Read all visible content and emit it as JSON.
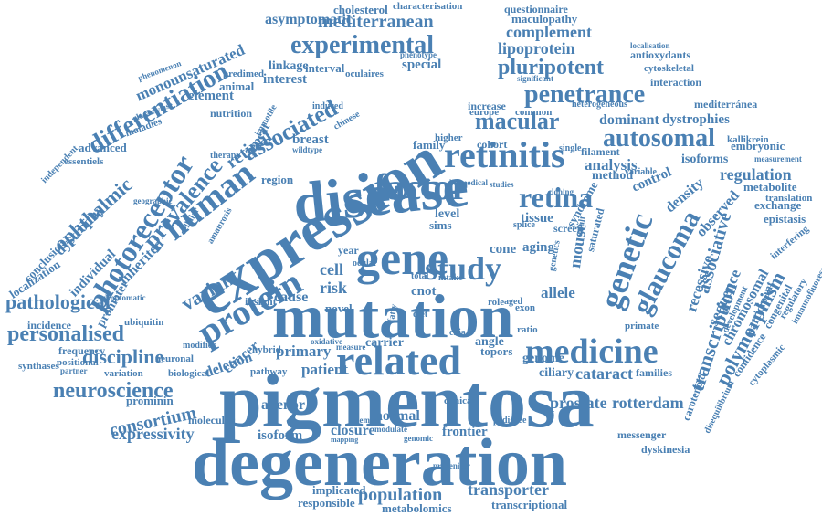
{
  "cloud": {
    "color": "#4a80b3",
    "words": [
      {
        "text": "pigmentosa"
      },
      {
        "text": "degeneration"
      },
      {
        "text": "mutation"
      },
      {
        "text": "expression"
      },
      {
        "text": "disease"
      },
      {
        "text": "gene"
      },
      {
        "text": "related"
      },
      {
        "text": "medicine"
      },
      {
        "text": "retinitis"
      },
      {
        "text": "factor"
      },
      {
        "text": "study"
      },
      {
        "text": "protein"
      },
      {
        "text": "human"
      },
      {
        "text": "genetic"
      },
      {
        "text": "glaucoma"
      },
      {
        "text": "retina"
      },
      {
        "text": "penetrance"
      },
      {
        "text": "macular"
      },
      {
        "text": "autosomal"
      },
      {
        "text": "photoreceptor"
      },
      {
        "text": "prevalence"
      },
      {
        "text": "associated"
      },
      {
        "text": "experimental"
      },
      {
        "text": "differentiation"
      },
      {
        "text": "neuroscience"
      },
      {
        "text": "personalised"
      },
      {
        "text": "pathological"
      },
      {
        "text": "transcription"
      },
      {
        "text": "polymorphism"
      },
      {
        "text": "variant"
      },
      {
        "text": "ophthalmic"
      },
      {
        "text": "associative"
      },
      {
        "text": "pluripotent"
      },
      {
        "text": "lipoprotein"
      },
      {
        "text": "mediterranean"
      },
      {
        "text": "consortium"
      },
      {
        "text": "discipline"
      },
      {
        "text": "expressivity"
      },
      {
        "text": "population"
      },
      {
        "text": "transporter"
      },
      {
        "text": "cataract"
      },
      {
        "text": "prostate"
      },
      {
        "text": "rotterdam"
      },
      {
        "text": "frontier"
      },
      {
        "text": "recessive"
      },
      {
        "text": "regulation"
      },
      {
        "text": "chromosomal"
      },
      {
        "text": "sequence"
      },
      {
        "text": "monounsaturated"
      },
      {
        "text": "complement"
      },
      {
        "text": "analysis"
      },
      {
        "text": "dominant"
      },
      {
        "text": "dystrophies"
      },
      {
        "text": "mouse"
      },
      {
        "text": "allele"
      },
      {
        "text": "patient"
      },
      {
        "text": "primary"
      },
      {
        "text": "deletion"
      },
      {
        "text": "cell"
      },
      {
        "text": "risk"
      },
      {
        "text": "cause"
      },
      {
        "text": "closure"
      },
      {
        "text": "normal"
      },
      {
        "text": "alienor"
      },
      {
        "text": "isoform"
      },
      {
        "text": "metabolomics"
      },
      {
        "text": "responsible"
      },
      {
        "text": "implicated"
      },
      {
        "text": "transcriptional"
      },
      {
        "text": "asymptomatic"
      },
      {
        "text": "cholesterol"
      },
      {
        "text": "questionnaire"
      },
      {
        "text": "characterisation"
      },
      {
        "text": "maculopathy"
      },
      {
        "text": "antioxydants"
      },
      {
        "text": "cytoskeletal"
      },
      {
        "text": "interaction"
      },
      {
        "text": "mediterránea"
      },
      {
        "text": "embryonic"
      },
      {
        "text": "isoforms"
      },
      {
        "text": "metabolite"
      },
      {
        "text": "exchange"
      },
      {
        "text": "epistasis"
      },
      {
        "text": "translation"
      },
      {
        "text": "interfering"
      },
      {
        "text": "participant"
      },
      {
        "text": "congenital"
      },
      {
        "text": "regulatory"
      },
      {
        "text": "confidence"
      },
      {
        "text": "cytoplasmic"
      },
      {
        "text": "immunofluorescence"
      },
      {
        "text": "development"
      },
      {
        "text": "carotenoid"
      },
      {
        "text": "disequilibrium"
      },
      {
        "text": "dyskinesia"
      },
      {
        "text": "messenger"
      },
      {
        "text": "genome"
      },
      {
        "text": "ciliary"
      },
      {
        "text": "families"
      },
      {
        "text": "inherited"
      },
      {
        "text": "dystrophy"
      },
      {
        "text": "localization"
      },
      {
        "text": "conclusion"
      },
      {
        "text": "individual"
      },
      {
        "text": "promoter"
      },
      {
        "text": "cancer"
      },
      {
        "text": "incidence"
      },
      {
        "text": "frequency"
      },
      {
        "text": "synthases"
      },
      {
        "text": "positional"
      },
      {
        "text": "variation"
      },
      {
        "text": "neuronal"
      },
      {
        "text": "biological"
      },
      {
        "text": "prominin"
      },
      {
        "text": "molecular"
      },
      {
        "text": "hybrid"
      },
      {
        "text": "pathway"
      },
      {
        "text": "retinal"
      },
      {
        "text": "breast"
      },
      {
        "text": "element"
      },
      {
        "text": "animal"
      },
      {
        "text": "nutrition"
      },
      {
        "text": "interest"
      },
      {
        "text": "linkage"
      },
      {
        "text": "interval"
      },
      {
        "text": "special"
      },
      {
        "text": "advanced"
      },
      {
        "text": "essentiels"
      },
      {
        "text": "maladies"
      },
      {
        "text": "glutamylase"
      },
      {
        "text": "phenomenon"
      },
      {
        "text": "independent"
      },
      {
        "text": "family"
      },
      {
        "text": "cohort"
      },
      {
        "text": "filament"
      },
      {
        "text": "method"
      },
      {
        "text": "control"
      },
      {
        "text": "density"
      },
      {
        "text": "observed"
      },
      {
        "text": "syndrome"
      },
      {
        "text": "saturated"
      },
      {
        "text": "tissue"
      },
      {
        "text": "aging"
      },
      {
        "text": "cone"
      },
      {
        "text": "level"
      },
      {
        "text": "cnot"
      },
      {
        "text": "sims"
      },
      {
        "text": "year"
      },
      {
        "text": "novel"
      },
      {
        "text": "angle"
      },
      {
        "text": "carrier"
      },
      {
        "text": "topors"
      },
      {
        "text": "clinical"
      },
      {
        "text": "exon"
      },
      {
        "text": "role"
      },
      {
        "text": "screen"
      },
      {
        "text": "increase"
      },
      {
        "text": "europe"
      },
      {
        "text": "common"
      },
      {
        "text": "higher"
      },
      {
        "text": "predimed"
      },
      {
        "text": "therapy"
      },
      {
        "text": "repeat"
      },
      {
        "text": "region"
      },
      {
        "text": "immotile"
      },
      {
        "text": "localisation"
      },
      {
        "text": "heterogeneous"
      },
      {
        "text": "kallikrein"
      },
      {
        "text": "measurement"
      },
      {
        "text": "primate"
      },
      {
        "text": "ubiquitin"
      },
      {
        "text": "modifier"
      },
      {
        "text": "cellular"
      },
      {
        "text": "amaurosis"
      },
      {
        "text": "oculaires"
      },
      {
        "text": "phenotype"
      },
      {
        "text": "significant"
      },
      {
        "text": "induced"
      },
      {
        "text": "insight"
      },
      {
        "text": "wildtype"
      },
      {
        "text": "chinese"
      },
      {
        "text": "single"
      },
      {
        "text": "variable"
      },
      {
        "text": "genomic"
      },
      {
        "text": "modulate"
      },
      {
        "text": "member"
      },
      {
        "text": "pedigree"
      },
      {
        "text": "progenitor"
      },
      {
        "text": "ratio"
      },
      {
        "text": "ocular"
      },
      {
        "text": "splice"
      },
      {
        "text": "total"
      },
      {
        "text": "diet"
      },
      {
        "text": "aged"
      },
      {
        "text": "cilia"
      },
      {
        "text": "fatty"
      },
      {
        "text": "intake"
      },
      {
        "text": "adult"
      },
      {
        "text": "genetics"
      },
      {
        "text": "cloning"
      },
      {
        "text": "studies"
      },
      {
        "text": "biomedical"
      },
      {
        "text": "oxidative"
      },
      {
        "text": "measure"
      },
      {
        "text": "partner"
      },
      {
        "text": "symptomatic"
      },
      {
        "text": "geographic"
      },
      {
        "text": "mapping"
      },
      {
        "text": "published"
      }
    ]
  }
}
